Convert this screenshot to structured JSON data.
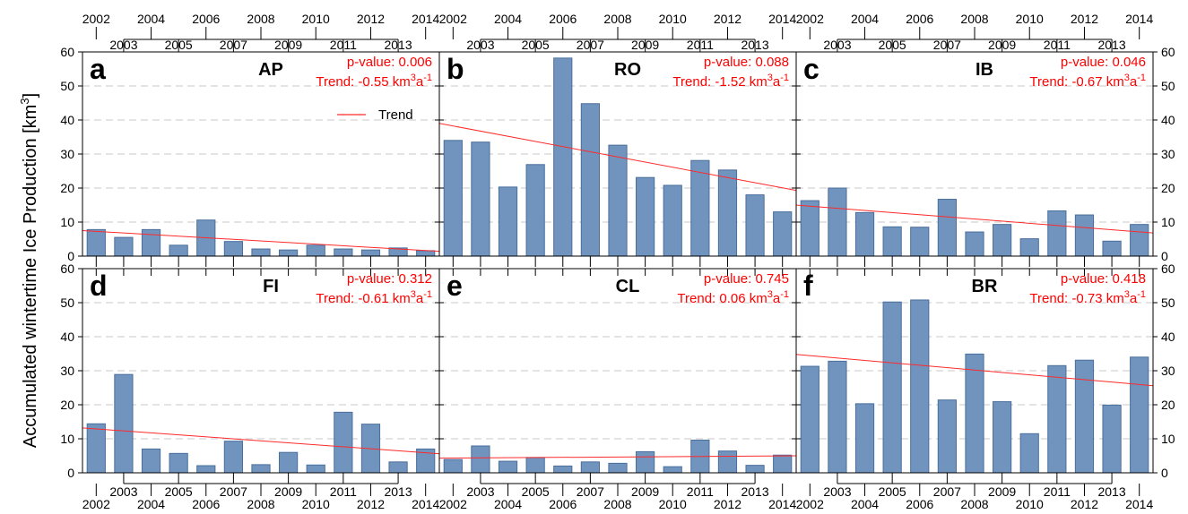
{
  "figure": {
    "ylabel": "Accumulated wintertime Ice Production [km",
    "ylabel_sup": "3",
    "ylabel_end": "]",
    "legend_label": "Trend",
    "colors": {
      "bar": "#7094be",
      "bar_edge": "#4a6f9c",
      "trend": "#ff2a2a",
      "grid": "#c8c8c8",
      "axis": "#000000"
    }
  },
  "chart_data": [
    {
      "type": "bar",
      "panel": "a",
      "region": "AP",
      "categories": [
        "2002",
        "2003",
        "2004",
        "2005",
        "2006",
        "2007",
        "2008",
        "2009",
        "2010",
        "2011",
        "2012",
        "2013",
        "2014"
      ],
      "values": [
        7.8,
        5.5,
        7.8,
        3.2,
        10.6,
        4.3,
        2.1,
        1.8,
        3.2,
        2.1,
        1.8,
        2.4,
        1.6
      ],
      "trend_line": [
        7.5,
        1.4
      ],
      "p_value_text": "p-value: 0.006",
      "trend_text": "Trend: -0.55 km",
      "trend_sup1": "3",
      "trend_unit2": "a",
      "trend_sup2": "-1",
      "ylim": [
        0,
        60
      ],
      "yticks": [
        0,
        10,
        20,
        30,
        40,
        50,
        60
      ],
      "grid": true,
      "legend": "inside"
    },
    {
      "type": "bar",
      "panel": "b",
      "region": "RO",
      "categories": [
        "2002",
        "2003",
        "2004",
        "2005",
        "2006",
        "2007",
        "2008",
        "2009",
        "2010",
        "2011",
        "2012",
        "2013",
        "2014"
      ],
      "values": [
        34.0,
        33.5,
        20.3,
        26.9,
        58.2,
        44.8,
        32.6,
        23.1,
        20.8,
        28.1,
        25.3,
        18.0,
        13.0
      ],
      "trend_line": [
        39.0,
        19.3
      ],
      "p_value_text": "p-value: 0.088",
      "trend_text": "Trend: -1.52 km",
      "trend_sup1": "3",
      "trend_unit2": "a",
      "trend_sup2": "-1",
      "ylim": [
        0,
        60
      ],
      "yticks": [
        0,
        10,
        20,
        30,
        40,
        50,
        60
      ],
      "grid": true
    },
    {
      "type": "bar",
      "panel": "c",
      "region": "IB",
      "categories": [
        "2002",
        "2003",
        "2004",
        "2005",
        "2006",
        "2007",
        "2008",
        "2009",
        "2010",
        "2011",
        "2012",
        "2013",
        "2014"
      ],
      "values": [
        16.3,
        20.0,
        12.8,
        8.6,
        8.5,
        16.7,
        7.1,
        9.3,
        5.1,
        13.3,
        12.1,
        4.4,
        9.3
      ],
      "trend_line": [
        15.0,
        6.8
      ],
      "p_value_text": "p-value: 0.046",
      "trend_text": "Trend: -0.67 km",
      "trend_sup1": "3",
      "trend_unit2": "a",
      "trend_sup2": "-1",
      "ylim": [
        0,
        60
      ],
      "yticks": [
        0,
        10,
        20,
        30,
        40,
        50,
        60
      ],
      "grid": true
    },
    {
      "type": "bar",
      "panel": "d",
      "region": "FI",
      "categories": [
        "2002",
        "2003",
        "2004",
        "2005",
        "2006",
        "2007",
        "2008",
        "2009",
        "2010",
        "2011",
        "2012",
        "2013",
        "2014"
      ],
      "values": [
        14.4,
        28.9,
        7.0,
        5.7,
        2.1,
        9.3,
        2.4,
        6.0,
        2.3,
        17.8,
        14.3,
        3.2,
        7.0
      ],
      "trend_line": [
        13.2,
        5.6
      ],
      "p_value_text": "p-value: 0.312",
      "trend_text": "Trend: -0.61 km",
      "trend_sup1": "3",
      "trend_unit2": "a",
      "trend_sup2": "-1",
      "ylim": [
        0,
        60
      ],
      "yticks": [
        0,
        10,
        20,
        30,
        40,
        50,
        60
      ],
      "grid": true
    },
    {
      "type": "bar",
      "panel": "e",
      "region": "CL",
      "categories": [
        "2002",
        "2003",
        "2004",
        "2005",
        "2006",
        "2007",
        "2008",
        "2009",
        "2010",
        "2011",
        "2012",
        "2013",
        "2014"
      ],
      "values": [
        3.9,
        7.9,
        3.4,
        4.5,
        2.0,
        3.2,
        2.8,
        6.2,
        1.8,
        9.6,
        6.4,
        2.2,
        5.2
      ],
      "trend_line": [
        4.3,
        5.0
      ],
      "p_value_text": "p-value: 0.745",
      "trend_text": "Trend: 0.06 km",
      "trend_sup1": "3",
      "trend_unit2": "a",
      "trend_sup2": "-1",
      "ylim": [
        0,
        60
      ],
      "yticks": [
        0,
        10,
        20,
        30,
        40,
        50,
        60
      ],
      "grid": true
    },
    {
      "type": "bar",
      "panel": "f",
      "region": "BR",
      "categories": [
        "2002",
        "2003",
        "2004",
        "2005",
        "2006",
        "2007",
        "2008",
        "2009",
        "2010",
        "2011",
        "2012",
        "2013",
        "2014"
      ],
      "values": [
        31.3,
        32.8,
        20.3,
        50.2,
        50.8,
        21.4,
        34.9,
        20.9,
        11.5,
        31.5,
        33.1,
        19.9,
        34.0
      ],
      "trend_line": [
        34.8,
        25.6
      ],
      "p_value_text": "p-value: 0.418",
      "trend_text": "Trend: -0.73 km",
      "trend_sup1": "3",
      "trend_unit2": "a",
      "trend_sup2": "-1",
      "ylim": [
        0,
        60
      ],
      "yticks": [
        0,
        10,
        20,
        30,
        40,
        50,
        60
      ],
      "grid": true
    }
  ]
}
